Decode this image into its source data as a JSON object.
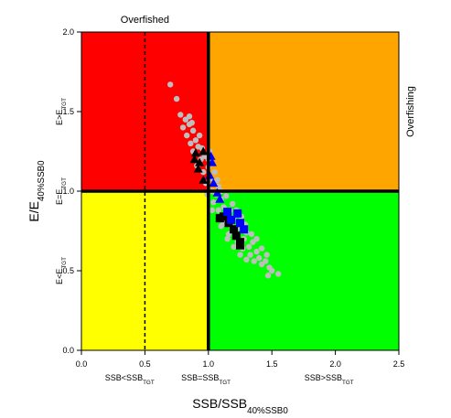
{
  "chart_data": {
    "type": "scatter",
    "xlabel": {
      "text": "SSB/SSB",
      "sub": "40%SSB0"
    },
    "ylabel": {
      "text": "E/E",
      "sub": "40%SSB0"
    },
    "top_annotation": "Overfished",
    "right_annotation": "Overfishing",
    "x_zone_labels": [
      {
        "text": "SSB<SSB",
        "sub": "TGT"
      },
      {
        "text": "SSB=SSB",
        "sub": "TGT"
      },
      {
        "text": "SSB>SSB",
        "sub": "TGT"
      }
    ],
    "y_zone_labels": [
      {
        "text": "E<E",
        "sub": "TGT"
      },
      {
        "text": "E=E",
        "sub": "TGT"
      },
      {
        "text": "E>E",
        "sub": "TGT"
      }
    ],
    "xlim": [
      0,
      2.5
    ],
    "ylim": [
      0,
      2
    ],
    "xticks": [
      {
        "value": 0,
        "label": "0.0"
      },
      {
        "value": 0.5,
        "label": "0.5"
      },
      {
        "value": 1,
        "label": "1.0"
      },
      {
        "value": 1.5,
        "label": "1.5"
      },
      {
        "value": 2,
        "label": "2.0"
      },
      {
        "value": 2.5,
        "label": "2.5"
      }
    ],
    "yticks": [
      {
        "value": 0,
        "label": "0.0"
      },
      {
        "value": 0.5,
        "label": "0.5"
      },
      {
        "value": 1,
        "label": "1.0"
      },
      {
        "value": 1.5,
        "label": "1.5"
      },
      {
        "value": 2,
        "label": "2.0"
      }
    ],
    "zone_colors": {
      "upper_left": "#ff0000",
      "upper_right": "#ffa500",
      "lower_left": "#ffff00",
      "lower_right": "#00ff00"
    },
    "ref_x": 1,
    "ref_y": 1,
    "dashed_x": 0.5,
    "series": [
      {
        "marker": "circle",
        "color": "#bebebe",
        "x": [
          0.7,
          0.75,
          0.78,
          0.82,
          0.85,
          0.8,
          0.83,
          0.88,
          0.86,
          0.9,
          0.92,
          0.88,
          0.94,
          0.97,
          0.91,
          0.96,
          1.0,
          0.98,
          1.02,
          1.05,
          1.03,
          1.06,
          1.08,
          1.04,
          1.1,
          1.12,
          1.08,
          1.14,
          1.17,
          1.12,
          1.18,
          1.2,
          1.16,
          1.22,
          1.25,
          1.23,
          1.28,
          1.3,
          1.27,
          1.32,
          1.35,
          1.33,
          1.38,
          1.4,
          1.36,
          1.42,
          1.45,
          1.48,
          1.5,
          1.55,
          1.47,
          0.85,
          0.87,
          0.93,
          0.95,
          1.0,
          1.01,
          1.07,
          1.1,
          1.14,
          1.19,
          1.22,
          1.26,
          1.29,
          1.34,
          1.38,
          1.42,
          1.46,
          0.99,
          1.03,
          1.1,
          1.15,
          1.2,
          1.25,
          1.3
        ],
        "y": [
          1.67,
          1.58,
          1.48,
          1.45,
          1.42,
          1.4,
          1.35,
          1.38,
          1.3,
          1.32,
          1.28,
          1.25,
          1.2,
          1.22,
          1.16,
          1.12,
          1.15,
          1.05,
          1.08,
          1.12,
          1.0,
          0.98,
          1.03,
          0.93,
          0.95,
          0.9,
          0.88,
          0.85,
          0.88,
          0.8,
          0.78,
          0.83,
          0.73,
          0.74,
          0.77,
          0.68,
          0.7,
          0.74,
          0.64,
          0.65,
          0.68,
          0.6,
          0.62,
          0.58,
          0.56,
          0.54,
          0.56,
          0.52,
          0.5,
          0.48,
          0.47,
          1.47,
          1.43,
          1.35,
          1.27,
          1.2,
          1.25,
          1.07,
          1.0,
          0.97,
          0.92,
          0.88,
          0.84,
          0.79,
          0.73,
          0.7,
          0.64,
          0.6,
          0.98,
          0.88,
          0.78,
          0.7,
          0.65,
          0.6,
          0.57
        ]
      },
      {
        "marker": "triangle",
        "color": "#000000",
        "x": [
          0.9,
          0.96,
          0.89,
          0.92,
          0.96,
          0.93
        ],
        "y": [
          1.24,
          1.25,
          1.2,
          1.14,
          1.07,
          1.18
        ]
      },
      {
        "marker": "triangle",
        "color": "#0000ff",
        "x": [
          1.02,
          1.03,
          1.01,
          1.04,
          1.07,
          1.09
        ],
        "y": [
          1.22,
          1.18,
          1.1,
          1.05,
          0.99,
          0.95
        ]
      },
      {
        "marker": "square",
        "color": "#000000",
        "x": [
          1.09,
          1.12,
          1.16,
          1.2,
          1.22,
          1.25,
          1.25
        ],
        "y": [
          0.83,
          0.84,
          0.8,
          0.76,
          0.72,
          0.68,
          0.66
        ]
      },
      {
        "marker": "square",
        "color": "#0000ff",
        "x": [
          1.15,
          1.18,
          1.23,
          1.25,
          1.28
        ],
        "y": [
          0.87,
          0.82,
          0.86,
          0.8,
          0.76
        ]
      }
    ]
  }
}
